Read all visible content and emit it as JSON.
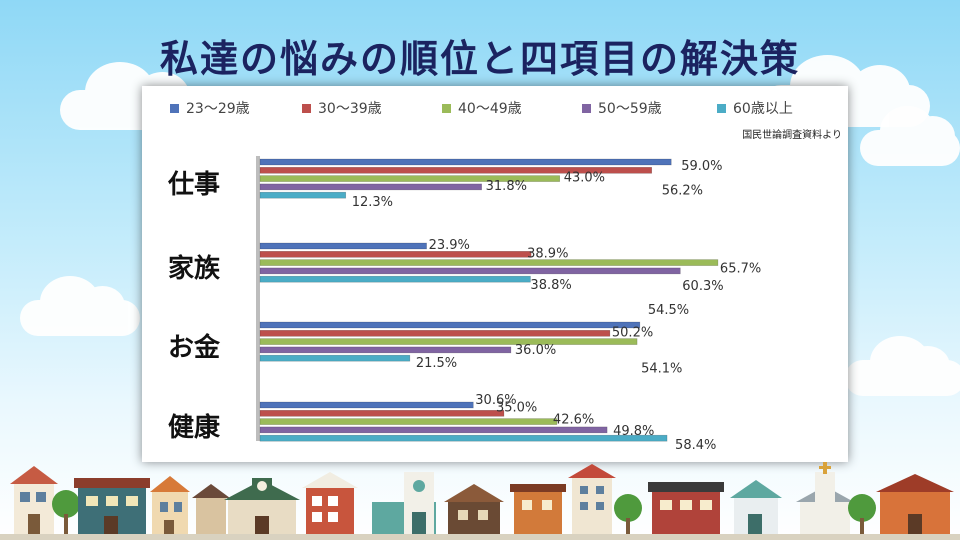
{
  "title": "私達の悩みの順位と四項目の解決策",
  "source_note": "国民世論調査資料より",
  "colors": {
    "series": [
      "#4f73b9",
      "#bd4f4c",
      "#9bbb59",
      "#8064a2",
      "#4bacc6"
    ],
    "title": "#1b2360",
    "label": "#333333"
  },
  "chart_data": {
    "type": "bar",
    "orientation": "horizontal",
    "categories": [
      "仕事",
      "家族",
      "お金",
      "健康"
    ],
    "series": [
      {
        "name": "23～29歳",
        "values": [
          59.0,
          23.9,
          54.5,
          30.6
        ]
      },
      {
        "name": "30～39歳",
        "values": [
          56.2,
          38.9,
          50.2,
          35.0
        ]
      },
      {
        "name": "40～49歳",
        "values": [
          43.0,
          65.7,
          54.1,
          42.6
        ]
      },
      {
        "name": "50～59歳",
        "values": [
          31.8,
          60.3,
          36.0,
          49.8
        ]
      },
      {
        "name": "60歳以上",
        "values": [
          12.3,
          38.8,
          21.5,
          58.4
        ]
      }
    ],
    "value_labels": [
      [
        "59.0%",
        "56.2%",
        "43.0%",
        "31.8%",
        "12.3%"
      ],
      [
        "23.9%",
        "38.9%",
        "65.7%",
        "60.3%",
        "38.8%"
      ],
      [
        "54.5%",
        "50.2%",
        "54.1%",
        "36.0%",
        "21.5%"
      ],
      [
        "30.6%",
        "35.0%",
        "42.6%",
        "49.8%",
        "58.4%"
      ]
    ],
    "xlim": [
      0,
      70
    ],
    "legend_position": "top",
    "grid": false
  }
}
